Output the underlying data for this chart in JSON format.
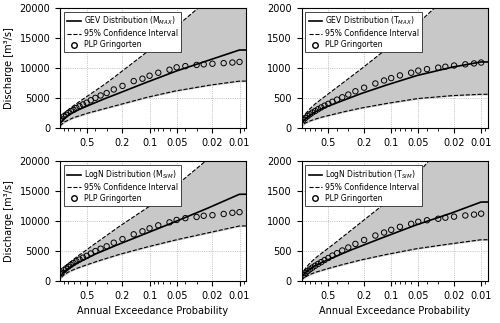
{
  "panels": [
    {
      "title": "GEV Distribution (M$_{MAX}$)",
      "dist_label": "GEV Distribution (M$_{MAX}$)",
      "ylabel": "Discharge [m³/s]",
      "ylim": [
        0,
        20000
      ],
      "yticks": [
        0,
        5000,
        10000,
        15000,
        20000
      ],
      "fit_x": [
        0.99,
        0.9,
        0.8,
        0.7,
        0.6,
        0.5,
        0.4,
        0.3,
        0.2,
        0.1,
        0.05,
        0.02,
        0.01
      ],
      "fit_y": [
        700,
        1500,
        2100,
        2600,
        3100,
        3600,
        4200,
        5000,
        6000,
        7800,
        9500,
        11500,
        13000
      ],
      "ci_up_y": [
        1200,
        2200,
        3000,
        3700,
        4400,
        5200,
        6200,
        7500,
        9500,
        13000,
        17000,
        22000,
        26000
      ],
      "ci_lo_y": [
        300,
        900,
        1300,
        1700,
        2000,
        2400,
        2800,
        3300,
        4000,
        5200,
        6200,
        7200,
        7800
      ],
      "data_points_x": [
        0.95,
        0.9,
        0.85,
        0.8,
        0.75,
        0.7,
        0.65,
        0.6,
        0.55,
        0.5,
        0.45,
        0.4,
        0.35,
        0.3,
        0.25,
        0.2,
        0.15,
        0.12,
        0.1,
        0.08,
        0.06,
        0.05,
        0.04,
        0.03,
        0.025,
        0.02,
        0.015,
        0.012,
        0.01
      ],
      "data_points_y": [
        1500,
        1900,
        2200,
        2500,
        2800,
        3000,
        3300,
        3600,
        3900,
        4200,
        4600,
        5000,
        5400,
        5800,
        6400,
        7000,
        7800,
        8200,
        8700,
        9200,
        9700,
        10100,
        10300,
        10500,
        10600,
        10700,
        10800,
        10900,
        11000
      ]
    },
    {
      "title": "GEV Distribution (T$_{MAX}$)",
      "dist_label": "GEV Distribution (T$_{MAX}$)",
      "ylabel": "",
      "ylim": [
        0,
        2000
      ],
      "yticks": [
        0,
        500,
        1000,
        1500,
        2000
      ],
      "fit_x": [
        0.99,
        0.9,
        0.8,
        0.7,
        0.6,
        0.5,
        0.4,
        0.3,
        0.2,
        0.1,
        0.05,
        0.02,
        0.01
      ],
      "fit_y": [
        70,
        150,
        210,
        265,
        315,
        365,
        420,
        490,
        590,
        740,
        880,
        1020,
        1100
      ],
      "ci_up_y": [
        120,
        230,
        320,
        400,
        480,
        570,
        680,
        820,
        1020,
        1380,
        1750,
        2300,
        2800
      ],
      "ci_lo_y": [
        30,
        80,
        115,
        145,
        175,
        205,
        240,
        285,
        340,
        420,
        490,
        540,
        560
      ],
      "data_points_x": [
        0.95,
        0.9,
        0.85,
        0.8,
        0.75,
        0.7,
        0.65,
        0.6,
        0.55,
        0.5,
        0.45,
        0.4,
        0.35,
        0.3,
        0.25,
        0.2,
        0.15,
        0.12,
        0.1,
        0.08,
        0.06,
        0.05,
        0.04,
        0.03,
        0.025,
        0.02,
        0.015,
        0.012,
        0.01
      ],
      "data_points_y": [
        130,
        165,
        195,
        225,
        255,
        280,
        310,
        340,
        370,
        400,
        435,
        470,
        510,
        555,
        610,
        670,
        740,
        790,
        830,
        875,
        920,
        955,
        980,
        1005,
        1020,
        1040,
        1060,
        1075,
        1090
      ]
    },
    {
      "title": "LogN Distribution (M$_{SIM}$)",
      "dist_label": "LogN Distribution (M$_{SIM}$)",
      "ylabel": "Discharge [m³/s]",
      "ylim": [
        0,
        20000
      ],
      "yticks": [
        0,
        5000,
        10000,
        15000,
        20000
      ],
      "fit_x": [
        0.99,
        0.9,
        0.8,
        0.7,
        0.6,
        0.5,
        0.4,
        0.3,
        0.2,
        0.1,
        0.05,
        0.02,
        0.01
      ],
      "fit_y": [
        700,
        1500,
        2100,
        2700,
        3200,
        3800,
        4500,
        5300,
        6400,
        8200,
        10000,
        12500,
        14500
      ],
      "ci_up_y": [
        1000,
        2000,
        2900,
        3600,
        4400,
        5200,
        6300,
        7600,
        9500,
        12500,
        16000,
        21000,
        25000
      ],
      "ci_lo_y": [
        400,
        1000,
        1500,
        1900,
        2300,
        2700,
        3200,
        3800,
        4600,
        5800,
        6900,
        8200,
        9200
      ],
      "data_points_x": [
        0.95,
        0.9,
        0.85,
        0.8,
        0.75,
        0.7,
        0.65,
        0.6,
        0.55,
        0.5,
        0.45,
        0.4,
        0.35,
        0.3,
        0.25,
        0.2,
        0.15,
        0.12,
        0.1,
        0.08,
        0.06,
        0.05,
        0.04,
        0.03,
        0.025,
        0.02,
        0.015,
        0.012,
        0.01
      ],
      "data_points_y": [
        1400,
        1800,
        2100,
        2400,
        2700,
        3000,
        3300,
        3600,
        3900,
        4200,
        4600,
        5000,
        5400,
        5800,
        6400,
        7000,
        7800,
        8300,
        8800,
        9300,
        9800,
        10200,
        10500,
        10700,
        10900,
        11000,
        11200,
        11400,
        11500
      ]
    },
    {
      "title": "LogN Distribution (T$_{SIM}$)",
      "dist_label": "LogN Distribution (T$_{SIM}$)",
      "ylabel": "",
      "ylim": [
        0,
        2000
      ],
      "yticks": [
        0,
        500,
        1000,
        1500,
        2000
      ],
      "fit_x": [
        0.99,
        0.9,
        0.8,
        0.7,
        0.6,
        0.5,
        0.4,
        0.3,
        0.2,
        0.1,
        0.05,
        0.02,
        0.01
      ],
      "fit_y": [
        60,
        140,
        200,
        255,
        305,
        360,
        420,
        500,
        605,
        780,
        950,
        1150,
        1320
      ],
      "ci_up_y": [
        100,
        210,
        300,
        380,
        460,
        550,
        660,
        810,
        1020,
        1380,
        1800,
        2500,
        3100
      ],
      "ci_lo_y": [
        25,
        70,
        110,
        145,
        175,
        210,
        250,
        300,
        365,
        460,
        545,
        630,
        690
      ],
      "data_points_x": [
        0.95,
        0.9,
        0.85,
        0.8,
        0.75,
        0.7,
        0.65,
        0.6,
        0.55,
        0.5,
        0.45,
        0.4,
        0.35,
        0.3,
        0.25,
        0.2,
        0.15,
        0.12,
        0.1,
        0.08,
        0.06,
        0.05,
        0.04,
        0.03,
        0.025,
        0.02,
        0.015,
        0.012,
        0.01
      ],
      "data_points_y": [
        100,
        135,
        165,
        195,
        225,
        255,
        285,
        315,
        350,
        385,
        425,
        465,
        510,
        560,
        620,
        685,
        760,
        810,
        855,
        905,
        955,
        990,
        1015,
        1040,
        1058,
        1075,
        1095,
        1110,
        1125
      ]
    }
  ],
  "xticks": [
    0.5,
    0.2,
    0.1,
    0.05,
    0.02,
    0.01
  ],
  "xlabel": "Annual Exceedance Probability",
  "fill_color": "#c8c8c8",
  "line_color": "#000000",
  "fontsize": 7
}
